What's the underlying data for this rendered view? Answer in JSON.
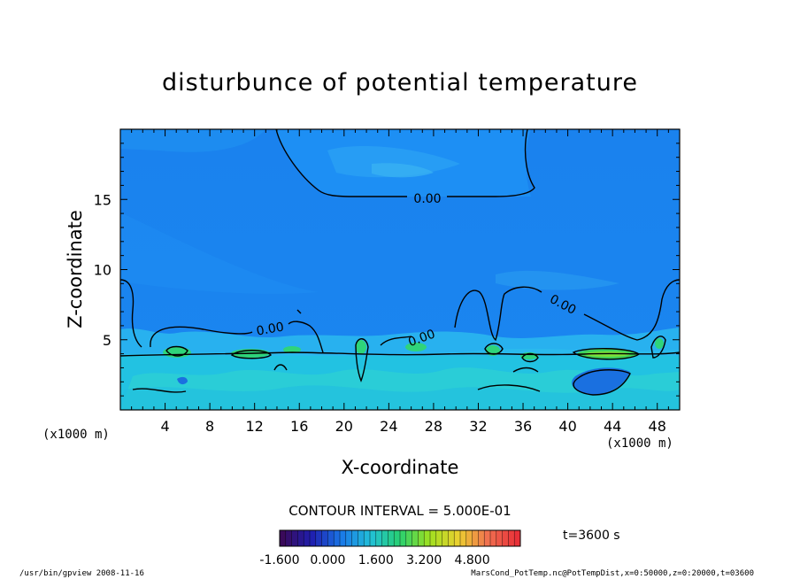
{
  "chart_data": {
    "type": "heatmap",
    "title": "disturbunce of potential temperature",
    "xlabel": "X-coordinate",
    "ylabel": "Z-coordinate",
    "x_unit": "(x1000 m)",
    "x_ticks": [
      "4",
      "8",
      "12",
      "16",
      "20",
      "24",
      "28",
      "32",
      "36",
      "40",
      "44",
      "48"
    ],
    "x_tick_values": [
      4,
      8,
      12,
      16,
      20,
      24,
      28,
      32,
      36,
      40,
      44,
      48
    ],
    "y_ticks": [
      "5",
      "10",
      "15"
    ],
    "y_tick_values": [
      5,
      10,
      15
    ],
    "xlim": [
      0,
      50
    ],
    "ylim": [
      0,
      20
    ],
    "contour_interval_text": "CONTOUR INTERVAL = 5.000E-01",
    "contour_labels": [
      "0.00",
      "0.00",
      "0.00",
      "0.00",
      "0.00"
    ],
    "colorbar": {
      "tick_labels": [
        "-1.600",
        "0.000",
        "1.600",
        "3.200",
        "4.800"
      ],
      "min": -1.6,
      "max": 6.4,
      "colors": [
        "#3a0a5a",
        "#1f1fb0",
        "#1a78e8",
        "#22c0d8",
        "#28d070",
        "#9fe020",
        "#ecd030",
        "#f07050",
        "#e83038"
      ]
    },
    "time_label": "t=3600 s",
    "grid": false
  },
  "footer": {
    "left": "/usr/bin/gpview   2008-11-16",
    "right": "MarsCond_PotTemp.nc@PotTempDist,x=0:50000,z=0:20000,t=03600"
  }
}
